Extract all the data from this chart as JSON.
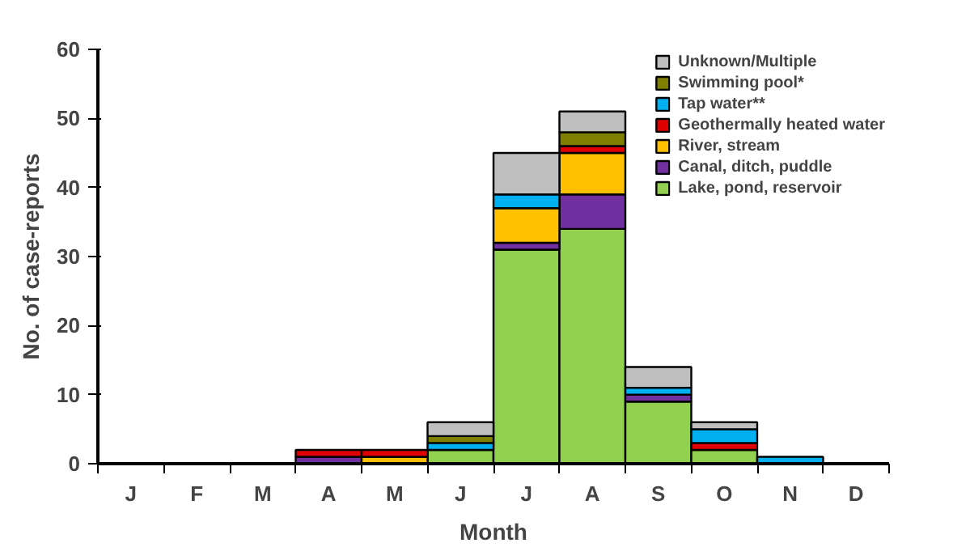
{
  "chart_data": {
    "type": "bar",
    "stacked": true,
    "xlabel": "Month",
    "ylabel": "No. of case-reports",
    "categories": [
      "J",
      "F",
      "M",
      "A",
      "M",
      "J",
      "J",
      "A",
      "S",
      "O",
      "N",
      "D"
    ],
    "ylim": [
      0,
      60
    ],
    "yticks": [
      0,
      10,
      20,
      30,
      40,
      50,
      60
    ],
    "grid": false,
    "legend": "top right",
    "series": [
      {
        "name": "Lake, pond, reservoir",
        "color": "#92d050",
        "values": [
          0,
          0,
          0,
          0,
          0,
          2,
          31,
          34,
          9,
          2,
          0,
          0
        ]
      },
      {
        "name": "Canal, ditch, puddle",
        "color": "#7030a0",
        "values": [
          0,
          0,
          0,
          1,
          0,
          0,
          1,
          5,
          1,
          0,
          0,
          0
        ]
      },
      {
        "name": "River, stream",
        "color": "#ffc000",
        "values": [
          0,
          0,
          0,
          0,
          1,
          0,
          5,
          6,
          0,
          0,
          0,
          0
        ]
      },
      {
        "name": "Geothermally heated water",
        "color": "#e00000",
        "values": [
          0,
          0,
          0,
          1,
          1,
          0,
          0,
          1,
          0,
          1,
          0,
          0
        ]
      },
      {
        "name": "Tap water**",
        "color": "#00b0f0",
        "values": [
          0,
          0,
          0,
          0,
          0,
          1,
          2,
          0,
          1,
          2,
          1,
          0
        ]
      },
      {
        "name": "Swimming pool*",
        "color": "#7f7f00",
        "values": [
          0,
          0,
          0,
          0,
          0,
          1,
          0,
          2,
          0,
          0,
          0,
          0
        ]
      },
      {
        "name": "Unknown/Multiple",
        "color": "#bfbfbf",
        "values": [
          0,
          0,
          0,
          0,
          0,
          2,
          6,
          3,
          3,
          1,
          0,
          0
        ]
      }
    ]
  }
}
